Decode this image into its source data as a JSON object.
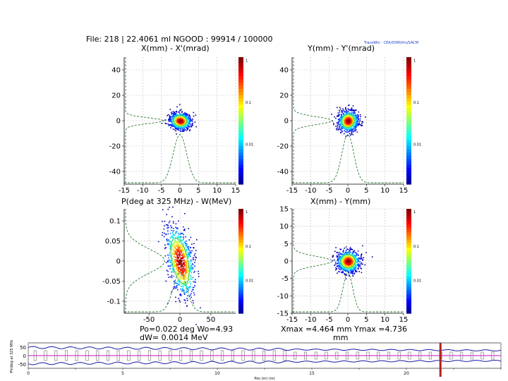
{
  "header": {
    "file_line": "File: 218 | 22.4061 ml    NGOOD : 99914 / 100000",
    "tracewin": "TraceWin - CEA/DSM/Irfu/SACM"
  },
  "chart_data": [
    {
      "id": "p1",
      "type": "heatmap",
      "title": "X(mm) - X'(mrad)",
      "xlabel": "",
      "ylabel": "",
      "xlim": [
        -15,
        15
      ],
      "ylim": [
        -50,
        50
      ],
      "xticks": [
        -15,
        -10,
        -5,
        0,
        5,
        10,
        15
      ],
      "yticks": [
        40,
        20,
        0,
        -20,
        -40
      ],
      "colorbar_ticks": [
        "1",
        "0.1",
        "0.01"
      ],
      "grid": true,
      "beam": {
        "center": [
          0,
          0
        ],
        "sx": 1.4,
        "sy": 3.2,
        "tilt_deg": 8
      },
      "proj_y": {
        "center": 0,
        "width": 2.2
      },
      "proj_x": {
        "center": 0,
        "width": 1.8
      }
    },
    {
      "id": "p2",
      "type": "heatmap",
      "title": "Y(mm) - Y'(mrad)",
      "xlabel": "",
      "ylabel": "",
      "xlim": [
        -15,
        15
      ],
      "ylim": [
        -50,
        50
      ],
      "xticks": [
        -15,
        -10,
        -5,
        0,
        5,
        10,
        15
      ],
      "yticks": [
        40,
        20,
        0,
        -20,
        -40
      ],
      "colorbar_ticks": [
        "1",
        "0.1",
        "0.01"
      ],
      "grid": true,
      "beam": {
        "center": [
          0,
          0
        ],
        "sx": 1.3,
        "sy": 4.0,
        "tilt_deg": 25
      },
      "proj_y": {
        "center": 0,
        "width": 3.0
      },
      "proj_x": {
        "center": 0,
        "width": 1.6
      }
    },
    {
      "id": "p3",
      "type": "heatmap",
      "title": "P(deg at 325 MHz) - W(MeV)",
      "xlabel": "",
      "ylabel": "",
      "xlim": [
        -90,
        90
      ],
      "ylim": [
        -0.13,
        0.13
      ],
      "xticks": [
        -50,
        0,
        50
      ],
      "yticks": [
        0.1,
        0.05,
        0,
        -0.05,
        -0.1
      ],
      "colorbar_ticks": [
        "1",
        "0.1",
        "0.01"
      ],
      "grid": true,
      "beam": {
        "center": [
          0,
          0
        ],
        "sx": 10,
        "sy": 0.045,
        "tilt_deg": -12
      },
      "proj_y": {
        "center": 0,
        "width": 0.03
      },
      "proj_x": {
        "center": 0,
        "width": 11
      }
    },
    {
      "id": "p4",
      "type": "heatmap",
      "title": "X(mm) - Y(mm)",
      "xlabel": "",
      "ylabel": "",
      "xlim": [
        -15,
        15
      ],
      "ylim": [
        -15,
        15
      ],
      "xticks": [
        -15,
        -10,
        -5,
        0,
        5,
        10,
        15
      ],
      "yticks": [
        15,
        10,
        5,
        0,
        -5,
        -10,
        -15
      ],
      "colorbar_ticks": [
        "1",
        "0.1",
        "0.01"
      ],
      "grid": true,
      "beam": {
        "center": [
          0,
          0
        ],
        "sx": 1.5,
        "sy": 1.5,
        "tilt_deg": 0
      },
      "proj_y": {
        "center": 0,
        "width": 1.3
      },
      "proj_x": {
        "center": 0,
        "width": 1.3
      }
    },
    {
      "id": "p5",
      "type": "line",
      "title": "",
      "ylabel": "Ph(deg at 325 MHz)",
      "xlabel": "Pos (m) (m)",
      "xlim": [
        0,
        25
      ],
      "ylim": [
        -75,
        75
      ],
      "xticks": [
        0,
        2.5,
        5,
        7.5,
        10,
        12.5,
        15,
        17.5,
        20,
        22.5,
        25
      ],
      "xtick_labels": [
        "0",
        "",
        "5",
        "",
        "10",
        "",
        "15",
        "",
        "20",
        "",
        ""
      ],
      "yticks": [
        50,
        0,
        -50
      ],
      "marker_position": 21.8
    }
  ],
  "annotations": {
    "p3_bottom_1": "Po=0.022 deg  Wo=4.93",
    "p3_bottom_2": "dW= 0.0014 MeV",
    "p4_bottom_1": "Xmax =4.464 mm  Ymax =4.736",
    "p4_bottom_2": "mm"
  },
  "colors": {
    "projection": "#2e7d32",
    "envelope_blue": "#1a1aa8",
    "envelope_magenta": "#d040d0",
    "marker": "#b02020",
    "grid": "#bfbfbf"
  }
}
